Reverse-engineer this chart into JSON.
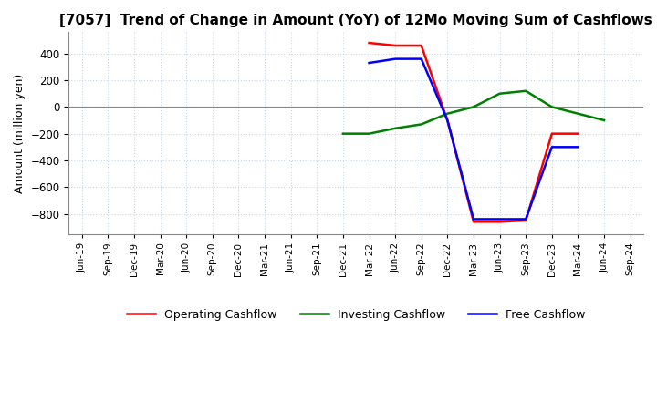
{
  "title": "[7057]  Trend of Change in Amount (YoY) of 12Mo Moving Sum of Cashflows",
  "ylabel": "Amount (million yen)",
  "ylim": [
    -950,
    560
  ],
  "yticks": [
    -800,
    -600,
    -400,
    -200,
    0,
    200,
    400
  ],
  "x_labels": [
    "Jun-19",
    "Sep-19",
    "Dec-19",
    "Mar-20",
    "Jun-20",
    "Sep-20",
    "Dec-20",
    "Mar-21",
    "Jun-21",
    "Sep-21",
    "Dec-21",
    "Mar-22",
    "Jun-22",
    "Sep-22",
    "Dec-22",
    "Mar-23",
    "Jun-23",
    "Sep-23",
    "Dec-23",
    "Mar-24",
    "Jun-24",
    "Sep-24"
  ],
  "operating_color": "#ff0000",
  "investing_color": "#008000",
  "free_color": "#0000ff",
  "background_color": "#ffffff",
  "grid_color": "#c8d8e8",
  "title_fontsize": 11
}
